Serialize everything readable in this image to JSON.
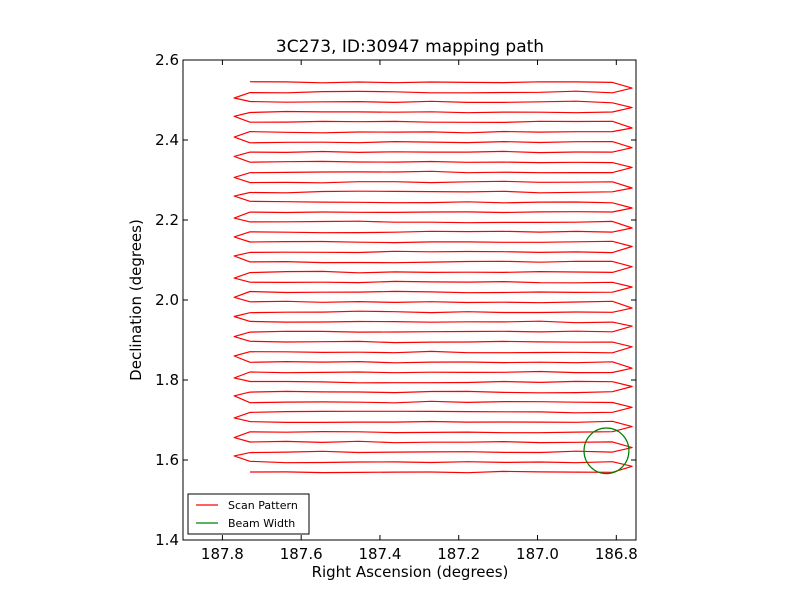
{
  "chart_data": {
    "type": "line",
    "title": "3C273, ID:30947 mapping path",
    "xlabel": "Right Ascension (degrees)",
    "ylabel": "Declination (degrees)",
    "xlim": [
      187.9,
      186.75
    ],
    "ylim": [
      1.4,
      2.6
    ],
    "x_inverted": true,
    "xticks": [
      187.8,
      187.6,
      187.4,
      187.2,
      187.0,
      186.8
    ],
    "xtick_labels": [
      "187.8",
      "187.6",
      "187.4",
      "187.2",
      "187.0",
      "186.8"
    ],
    "yticks": [
      1.4,
      1.6,
      1.8,
      2.0,
      2.2,
      2.4,
      2.6
    ],
    "ytick_labels": [
      "1.4",
      "1.6",
      "1.8",
      "2.0",
      "2.2",
      "2.4",
      "2.6"
    ],
    "grid": false,
    "legend_position": "lower-left",
    "series": [
      {
        "name": "Scan Pattern",
        "kind": "boustrophedon-scan",
        "color": "#ff0000",
        "ra_left": 187.77,
        "ra_right": 186.76,
        "row_start_ra": 187.73,
        "row_end_ra": 186.81,
        "dec_start": 1.57,
        "dec_end": 2.545,
        "rows": 40
      },
      {
        "name": "Beam Width",
        "kind": "circle",
        "color": "#008000",
        "center_ra": 186.825,
        "center_dec": 1.623,
        "radius_deg": 0.057
      }
    ]
  }
}
